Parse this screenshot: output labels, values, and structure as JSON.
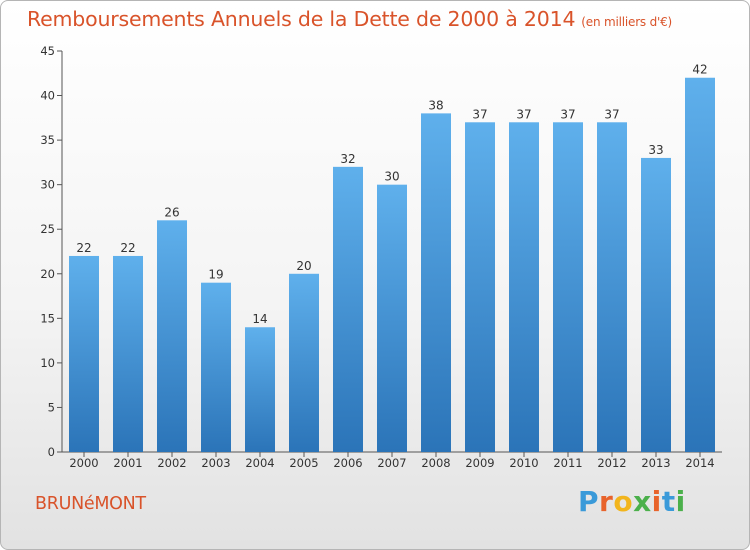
{
  "header": {
    "title": "Remboursements Annuels de la Dette de 2000 à 2014",
    "unit": "(en milliers d'€)"
  },
  "footer": {
    "town": "BRUNéMONT",
    "logo": [
      "P",
      "r",
      "o",
      "x",
      "i",
      "t",
      "i"
    ]
  },
  "chart_data": {
    "type": "bar",
    "title": "Remboursements Annuels de la Dette de 2000 à 2014",
    "xlabel": "",
    "ylabel": "",
    "categories": [
      "2000",
      "2001",
      "2002",
      "2003",
      "2004",
      "2005",
      "2006",
      "2007",
      "2008",
      "2009",
      "2010",
      "2011",
      "2012",
      "2013",
      "2014"
    ],
    "values": [
      22,
      22,
      26,
      19,
      14,
      20,
      32,
      30,
      38,
      37,
      37,
      37,
      37,
      33,
      42
    ],
    "ylim": [
      0,
      45
    ],
    "yticks": [
      0,
      5,
      10,
      15,
      20,
      25,
      30,
      35,
      40,
      45
    ],
    "grid": false,
    "bar_color": "#3d8fd6",
    "text_color": "#d9532a"
  }
}
